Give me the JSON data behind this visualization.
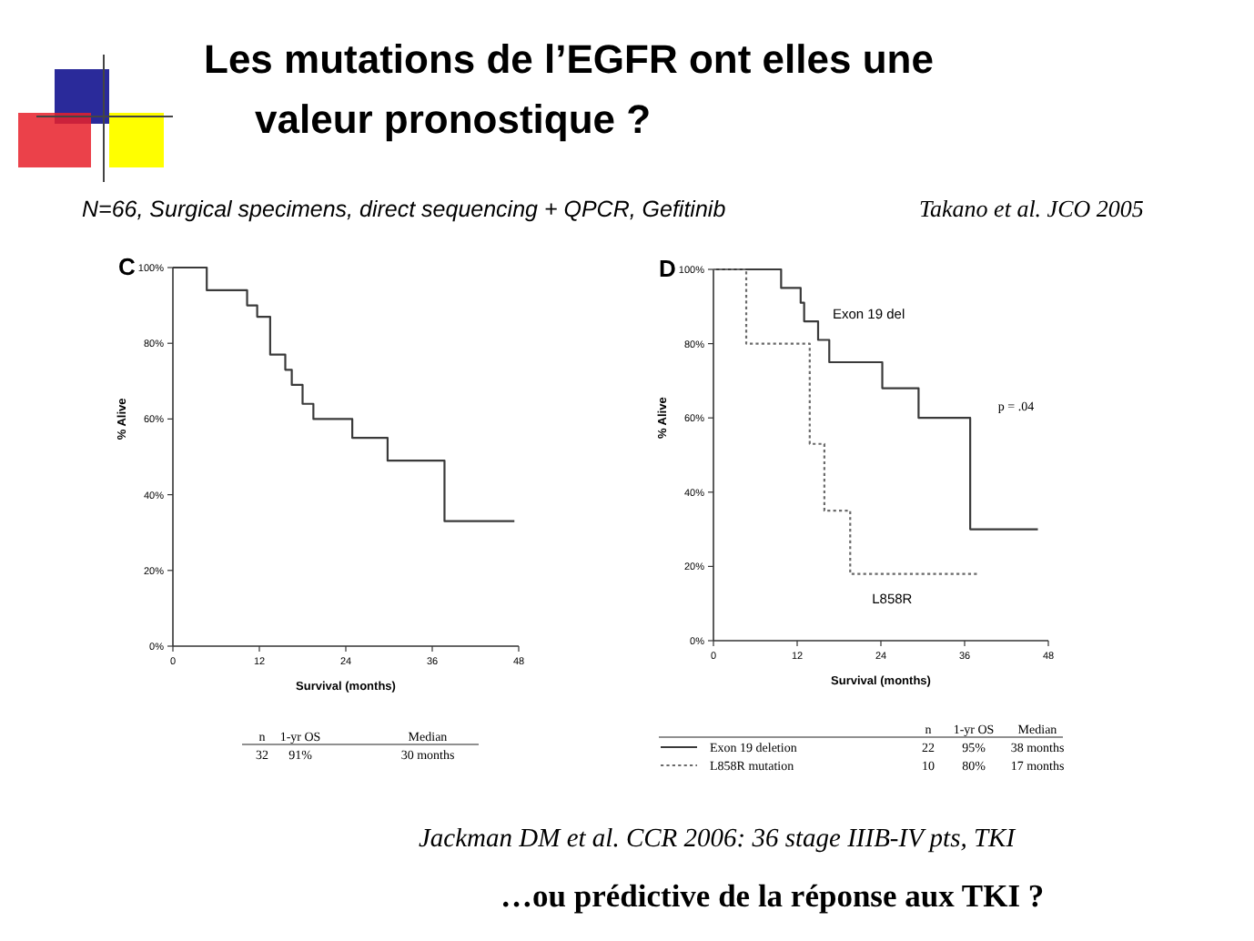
{
  "chart_data": [
    {
      "type": "other",
      "title": "Les mutations de l’EGFR ont elles une valeur pronostique ?",
      "subtitle": "N=66, Surgical specimens, direct sequencing + QPCR, Gefitinib",
      "annotations": [
        "Takano et al. JCO 2005",
        "Jackman DM et al. CCR 2006: 36 stage IIIB-IV pts, TKI",
        "…ou prédictive de la réponse aux TKI ?"
      ]
    },
    {
      "type": "step",
      "title": "C",
      "xlabel": "Survival (months)",
      "ylabel": "% Alive",
      "xlim": [
        0,
        48
      ],
      "xticks": [
        0,
        12,
        24,
        36,
        48
      ],
      "ylim": [
        0,
        100
      ],
      "yticks": [
        {
          "value": 0,
          "label": "0%"
        },
        {
          "value": 20,
          "label": "20%"
        },
        {
          "value": 40,
          "label": "40%"
        },
        {
          "value": 60,
          "label": "60%"
        },
        {
          "value": 80,
          "label": "80%"
        },
        {
          "value": 100,
          "label": "100%"
        }
      ],
      "series": [
        {
          "color": "#3a3a3a",
          "line_style": "solid",
          "x": [
            0,
            4.7,
            10.3,
            11.7,
            13.5,
            15.6,
            16.5,
            18,
            19.5,
            24.9,
            29.8,
            37.7,
            47.4
          ],
          "values": [
            100,
            94,
            90,
            87,
            77,
            73,
            69,
            64,
            60,
            55,
            49,
            33,
            33
          ]
        }
      ],
      "annotations": [
        "n",
        "1-yr OS",
        "Median",
        "32",
        "91%",
        "30 months"
      ]
    },
    {
      "type": "step",
      "title": "D",
      "xlabel": "Survival (months)",
      "ylabel": "% Alive",
      "xlim": [
        0,
        48
      ],
      "xticks": [
        0,
        12,
        24,
        36,
        48
      ],
      "ylim": [
        0,
        100
      ],
      "yticks": [
        {
          "value": 0,
          "label": "0%"
        },
        {
          "value": 20,
          "label": "20%"
        },
        {
          "value": 40,
          "label": "40%"
        },
        {
          "value": 60,
          "label": "60%"
        },
        {
          "value": 80,
          "label": "80%"
        },
        {
          "value": 100,
          "label": "100%"
        }
      ],
      "series": [
        {
          "name": "Exon 19 del",
          "color": "#3a3a3a",
          "line_style": "solid",
          "x": [
            0,
            9.7,
            12.5,
            13,
            15,
            16.6,
            24.2,
            29.4,
            36.8,
            46.5
          ],
          "values": [
            100,
            95,
            91,
            86,
            81,
            75,
            68,
            60,
            30,
            30
          ]
        },
        {
          "name": "L858R",
          "color": "#6a6a6a",
          "line_style": "dotted",
          "x": [
            0,
            4.7,
            13.8,
            15.9,
            19.6,
            38.1
          ],
          "values": [
            100,
            80,
            53,
            35,
            18,
            18
          ]
        }
      ],
      "annotations": [
        "p = .04",
        "n",
        "1-yr OS",
        "Median",
        "Exon 19 deletion",
        "22",
        "95%",
        "38 months",
        "L858R mutation",
        "10",
        "80%",
        "17 months"
      ]
    }
  ]
}
